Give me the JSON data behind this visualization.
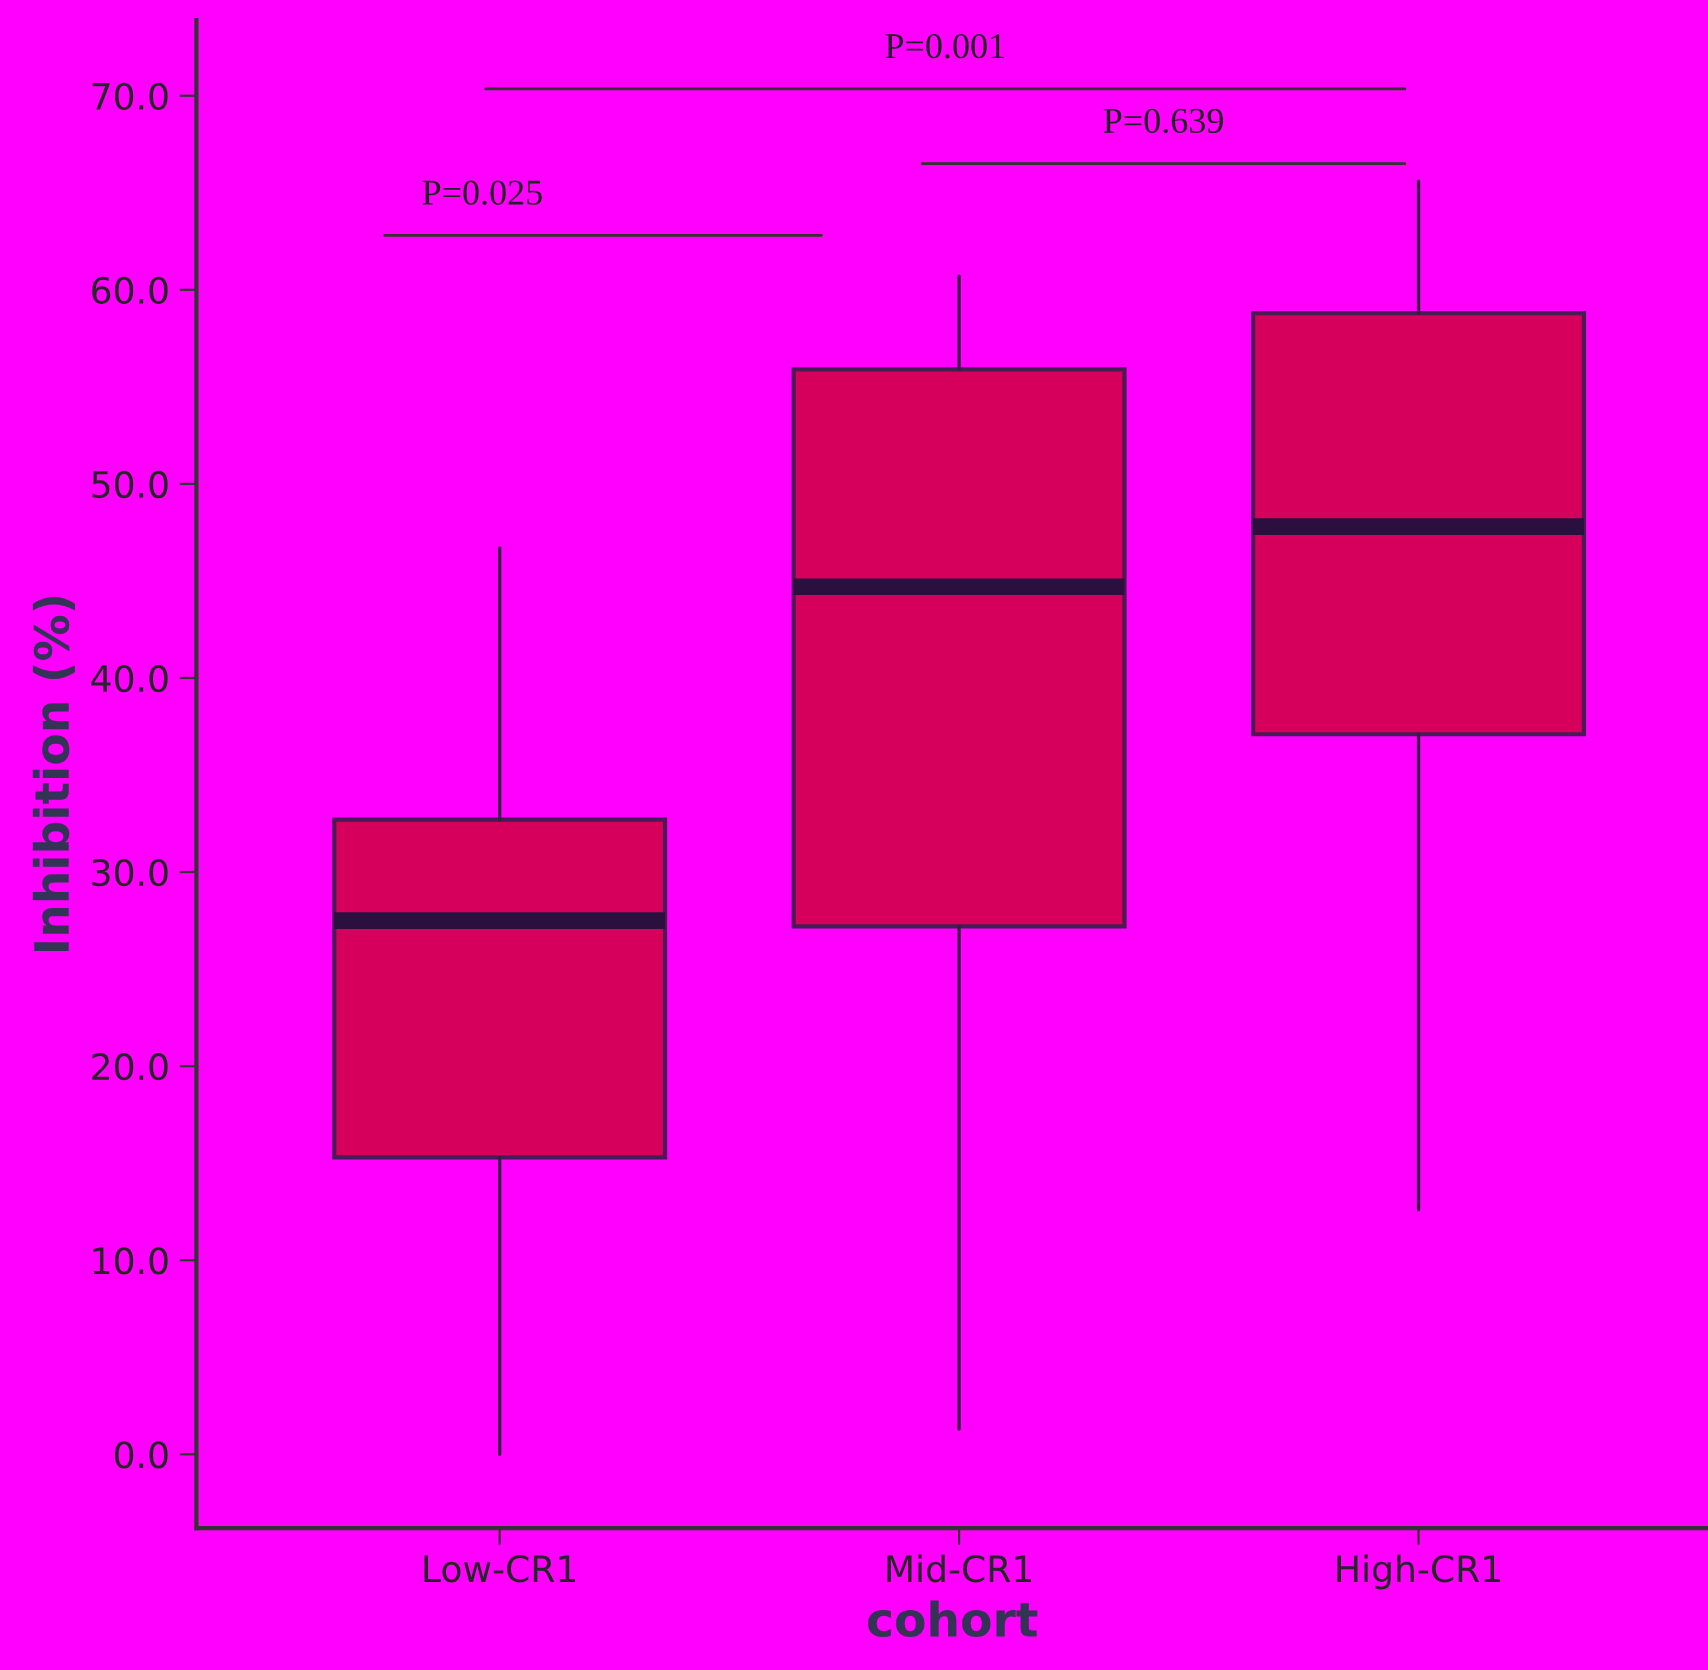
{
  "chart_data": {
    "type": "box",
    "xlabel": "cohort",
    "ylabel": "Inhibition (%)",
    "categories": [
      "Low-CR1",
      "Mid-CR1",
      "High-CR1"
    ],
    "boxes": [
      {
        "low": 0.0,
        "q1": 15.3,
        "median": 27.5,
        "q3": 32.7,
        "high": 46.7
      },
      {
        "low": 1.3,
        "q1": 27.2,
        "median": 44.7,
        "q3": 55.9,
        "high": 60.7
      },
      {
        "low": 12.6,
        "q1": 37.1,
        "median": 47.8,
        "q3": 58.8,
        "high": 65.6
      }
    ],
    "color": "#d6005c",
    "ylim": [
      -3.8,
      73.9
    ],
    "yticks": [
      {
        "value": 0,
        "label": "0.0"
      },
      {
        "value": 10,
        "label": "10.0"
      },
      {
        "value": 20,
        "label": "20.0"
      },
      {
        "value": 30,
        "label": "30.0"
      },
      {
        "value": 40,
        "label": "40.0"
      },
      {
        "value": 50,
        "label": "50.0"
      },
      {
        "value": 60,
        "label": "60.0"
      },
      {
        "value": 70,
        "label": "70.0"
      }
    ],
    "annotations": [
      "P=0.025",
      "P=0.001",
      "P=0.639"
    ],
    "grid": false,
    "legend": false
  }
}
